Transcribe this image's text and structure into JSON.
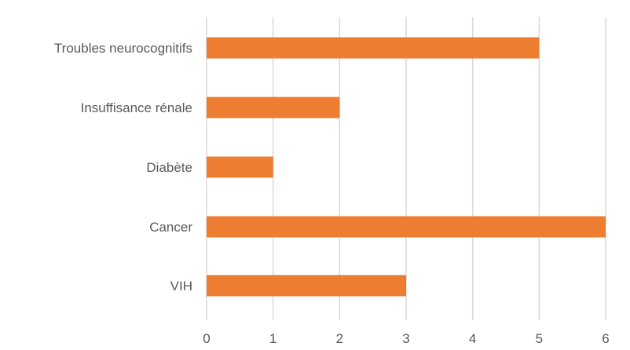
{
  "chart_data": {
    "type": "bar",
    "orientation": "horizontal",
    "categories": [
      "Troubles neurocognitifs",
      "Insuffisance rénale",
      "Diabète",
      "Cancer",
      "VIH"
    ],
    "values": [
      5,
      2,
      1,
      6,
      3
    ],
    "xlim": [
      0,
      6
    ],
    "xticks": [
      "0",
      "1",
      "2",
      "3",
      "4",
      "5",
      "6"
    ],
    "grid": "vertical",
    "bar_color": "#ed7d31",
    "grid_color": "#d9d9d9",
    "title": "",
    "xlabel": "",
    "ylabel": ""
  }
}
